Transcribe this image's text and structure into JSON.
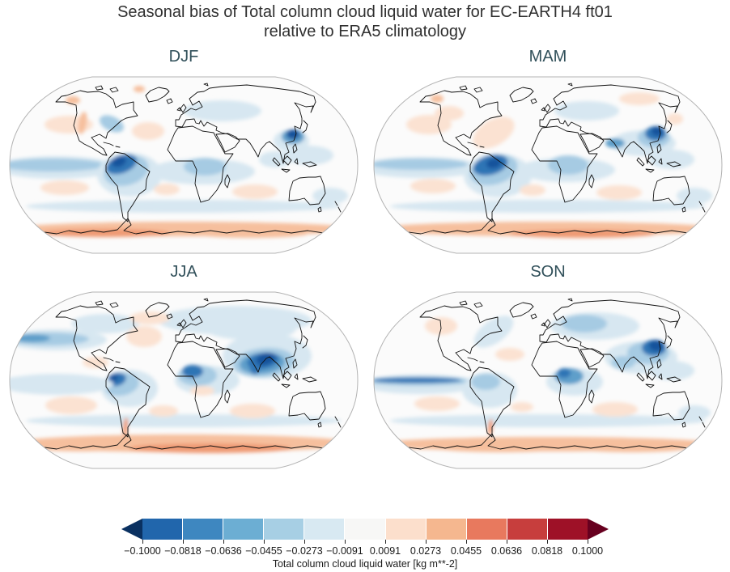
{
  "figure": {
    "title_line1": "Seasonal bias of Total column cloud liquid water for EC-EARTH4 ft01",
    "title_line2": "relative to ERA5 climatology"
  },
  "colors": {
    "title": "#303030",
    "panel_title": "#31505a",
    "map_bg": "#fbfbfb",
    "map_outline": "#b3b3b3",
    "coastline": "#111111"
  },
  "feature_palette": {
    "b5": "#17539c",
    "b4": "#2e74b5",
    "b3": "#5f9fca",
    "b2": "#a6cbe3",
    "b1": "#d7e7f1",
    "r1": "#fbe2d2",
    "r2": "#f6bf9d",
    "r3": "#ef9a73",
    "r4": "#e2765b"
  },
  "panels": [
    {
      "id": "djf",
      "label": "DJF",
      "features": [
        [
          60,
          115,
          75,
          14,
          0,
          "b1"
        ],
        [
          55,
          112,
          65,
          8,
          0,
          "b2"
        ],
        [
          240,
          120,
          65,
          16,
          0,
          "b1"
        ],
        [
          243,
          114,
          26,
          11,
          0,
          "b2"
        ],
        [
          150,
          124,
          40,
          27,
          0,
          "b1"
        ],
        [
          146,
          119,
          28,
          18,
          -15,
          "b2"
        ],
        [
          140,
          111,
          20,
          11,
          -20,
          "b4"
        ],
        [
          137,
          108,
          9,
          6,
          -20,
          "b5"
        ],
        [
          350,
          82,
          22,
          14,
          0,
          "b1"
        ],
        [
          352,
          77,
          14,
          9,
          0,
          "b3"
        ],
        [
          352,
          74,
          8,
          6,
          0,
          "b5"
        ],
        [
          265,
          45,
          48,
          13,
          0,
          "b1"
        ],
        [
          128,
          61,
          16,
          9,
          25,
          "b2"
        ],
        [
          372,
          100,
          30,
          12,
          0,
          "b1"
        ],
        [
          398,
          150,
          22,
          10,
          0,
          "b1"
        ],
        [
          330,
          105,
          20,
          10,
          0,
          "b1"
        ],
        [
          217,
          163,
          195,
          8,
          0,
          "b1"
        ],
        [
          75,
          62,
          30,
          11,
          0,
          "r1"
        ],
        [
          173,
          70,
          20,
          11,
          0,
          "r1"
        ],
        [
          92,
          60,
          5,
          14,
          10,
          "r2"
        ],
        [
          70,
          140,
          30,
          9,
          0,
          "r1"
        ],
        [
          196,
          142,
          16,
          7,
          0,
          "r1"
        ],
        [
          305,
          145,
          28,
          9,
          0,
          "r1"
        ],
        [
          217,
          191,
          212,
          9,
          0,
          "r2"
        ],
        [
          120,
          196,
          80,
          5,
          0,
          "r3"
        ],
        [
          300,
          197,
          70,
          5,
          0,
          "r2"
        ],
        [
          80,
          32,
          9,
          5,
          0,
          "r2"
        ],
        [
          162,
          18,
          7,
          4,
          0,
          "r2"
        ]
      ]
    },
    {
      "id": "mam",
      "label": "MAM",
      "features": [
        [
          60,
          115,
          75,
          13,
          0,
          "b1"
        ],
        [
          58,
          111,
          60,
          7,
          0,
          "b2"
        ],
        [
          240,
          118,
          60,
          15,
          0,
          "b1"
        ],
        [
          242,
          112,
          25,
          12,
          0,
          "b2"
        ],
        [
          155,
          125,
          42,
          27,
          0,
          "b1"
        ],
        [
          150,
          118,
          30,
          18,
          -15,
          "b2"
        ],
        [
          146,
          112,
          22,
          12,
          -15,
          "b4"
        ],
        [
          150,
          110,
          9,
          6,
          -10,
          "b5"
        ],
        [
          335,
          85,
          40,
          16,
          0,
          "b1"
        ],
        [
          348,
          78,
          20,
          12,
          0,
          "b2"
        ],
        [
          350,
          73,
          13,
          9,
          0,
          "b4"
        ],
        [
          352,
          70,
          7,
          6,
          0,
          "b5"
        ],
        [
          300,
          85,
          12,
          6,
          0,
          "b3"
        ],
        [
          265,
          45,
          40,
          12,
          0,
          "b1"
        ],
        [
          370,
          105,
          28,
          12,
          0,
          "b1"
        ],
        [
          398,
          150,
          22,
          10,
          0,
          "b1"
        ],
        [
          217,
          163,
          195,
          8,
          0,
          "b1"
        ],
        [
          150,
          72,
          28,
          16,
          -30,
          "r1"
        ],
        [
          70,
          62,
          28,
          12,
          0,
          "r1"
        ],
        [
          95,
          48,
          18,
          9,
          0,
          "r1"
        ],
        [
          330,
          30,
          25,
          8,
          0,
          "r1"
        ],
        [
          374,
          55,
          10,
          7,
          0,
          "r1"
        ],
        [
          75,
          138,
          28,
          9,
          0,
          "r1"
        ],
        [
          198,
          143,
          16,
          7,
          0,
          "r1"
        ],
        [
          305,
          146,
          28,
          9,
          0,
          "r1"
        ],
        [
          217,
          191,
          212,
          9,
          0,
          "r2"
        ],
        [
          260,
          197,
          90,
          5,
          0,
          "r3"
        ],
        [
          80,
          30,
          8,
          5,
          0,
          "r2"
        ]
      ]
    },
    {
      "id": "jja",
      "label": "JJA",
      "features": [
        [
          320,
          82,
          55,
          28,
          0,
          "b1"
        ],
        [
          316,
          90,
          38,
          18,
          -5,
          "b2"
        ],
        [
          314,
          91,
          28,
          13,
          -5,
          "b3"
        ],
        [
          315,
          88,
          20,
          10,
          -10,
          "b4"
        ],
        [
          318,
          86,
          12,
          7,
          -15,
          "b5"
        ],
        [
          305,
          97,
          6,
          8,
          0,
          "b4"
        ],
        [
          246,
          112,
          40,
          18,
          0,
          "b1"
        ],
        [
          234,
          106,
          24,
          13,
          0,
          "b2"
        ],
        [
          228,
          101,
          13,
          8,
          0,
          "b4"
        ],
        [
          150,
          122,
          35,
          23,
          0,
          "b1"
        ],
        [
          140,
          117,
          22,
          14,
          -10,
          "b2"
        ],
        [
          134,
          111,
          12,
          8,
          -15,
          "b4"
        ],
        [
          131,
          109,
          5,
          4,
          0,
          "b5"
        ],
        [
          60,
          62,
          62,
          13,
          0,
          "b1"
        ],
        [
          50,
          61,
          50,
          8,
          0,
          "b2"
        ],
        [
          30,
          60,
          22,
          5,
          0,
          "b3"
        ],
        [
          280,
          38,
          95,
          18,
          0,
          "b1"
        ],
        [
          120,
          42,
          42,
          12,
          0,
          "b1"
        ],
        [
          300,
          50,
          55,
          12,
          0,
          "b1"
        ],
        [
          55,
          114,
          62,
          9,
          0,
          "b2"
        ],
        [
          60,
          117,
          70,
          13,
          0,
          "b1"
        ],
        [
          217,
          162,
          195,
          8,
          0,
          "b1"
        ],
        [
          168,
          58,
          22,
          13,
          0,
          "r1"
        ],
        [
          108,
          90,
          16,
          7,
          0,
          "r1"
        ],
        [
          175,
          35,
          25,
          8,
          0,
          "r1"
        ],
        [
          78,
          143,
          32,
          11,
          0,
          "r1"
        ],
        [
          192,
          150,
          18,
          7,
          0,
          "r1"
        ],
        [
          302,
          150,
          28,
          9,
          0,
          "r1"
        ],
        [
          240,
          125,
          15,
          6,
          0,
          "r1"
        ],
        [
          217,
          190,
          212,
          11,
          0,
          "r2"
        ],
        [
          250,
          196,
          100,
          6,
          0,
          "r3"
        ],
        [
          90,
          195,
          60,
          5,
          0,
          "r2"
        ],
        [
          145,
          170,
          3,
          12,
          5,
          "r3"
        ]
      ]
    },
    {
      "id": "son",
      "label": "SON",
      "features": [
        [
          332,
          84,
          45,
          20,
          0,
          "b1"
        ],
        [
          341,
          78,
          26,
          14,
          0,
          "b2"
        ],
        [
          348,
          72,
          15,
          10,
          0,
          "b4"
        ],
        [
          351,
          69,
          9,
          7,
          0,
          "b5"
        ],
        [
          310,
          90,
          15,
          8,
          0,
          "b2"
        ],
        [
          275,
          45,
          55,
          17,
          0,
          "b1"
        ],
        [
          262,
          42,
          28,
          11,
          0,
          "b2"
        ],
        [
          250,
          114,
          35,
          17,
          0,
          "b1"
        ],
        [
          243,
          107,
          18,
          10,
          0,
          "b3"
        ],
        [
          237,
          103,
          8,
          6,
          0,
          "b4"
        ],
        [
          60,
          117,
          72,
          12,
          0,
          "b1"
        ],
        [
          58,
          113,
          65,
          6,
          0,
          "b2"
        ],
        [
          55,
          112,
          55,
          3.5,
          0,
          "b4"
        ],
        [
          145,
          124,
          34,
          22,
          0,
          "b1"
        ],
        [
          140,
          114,
          18,
          10,
          0,
          "b2"
        ],
        [
          150,
          52,
          28,
          14,
          -35,
          "b1"
        ],
        [
          370,
          100,
          28,
          12,
          0,
          "b1"
        ],
        [
          398,
          152,
          20,
          9,
          0,
          "b1"
        ],
        [
          217,
          162,
          195,
          8,
          0,
          "b1"
        ],
        [
          85,
          45,
          20,
          11,
          0,
          "r1"
        ],
        [
          170,
          80,
          18,
          8,
          0,
          "r1"
        ],
        [
          80,
          141,
          28,
          9,
          0,
          "r1"
        ],
        [
          185,
          145,
          14,
          6,
          0,
          "r1"
        ],
        [
          300,
          148,
          28,
          9,
          0,
          "r1"
        ],
        [
          217,
          191,
          212,
          9,
          0,
          "r2"
        ],
        [
          160,
          196,
          80,
          5,
          0,
          "r2"
        ],
        [
          320,
          196,
          70,
          5,
          0,
          "r2"
        ],
        [
          146,
          170,
          3,
          10,
          5,
          "r3"
        ]
      ]
    }
  ],
  "colorbar": {
    "label": "Total column cloud liquid water [kg m**-2]",
    "tick_labels": [
      "−0.1000",
      "−0.0818",
      "−0.0636",
      "−0.0455",
      "−0.0273",
      "−0.0091",
      "0.0091",
      "0.0273",
      "0.0455",
      "0.0636",
      "0.0818",
      "0.1000"
    ],
    "levels": [
      -0.1,
      -0.0818,
      -0.0636,
      -0.0455,
      -0.0273,
      -0.0091,
      0.0091,
      0.0273,
      0.0455,
      0.0636,
      0.0818,
      0.1
    ],
    "segment_colors": [
      "#2166ac",
      "#3e87c0",
      "#6caed3",
      "#a7cfe4",
      "#d8e9f2",
      "#f7f7f6",
      "#fcdfcc",
      "#f5b78f",
      "#e8795e",
      "#c73e3d",
      "#9e1127"
    ],
    "under_color": "#0a3161",
    "over_color": "#67001f"
  },
  "chart_data": {
    "type": "heatmap",
    "subtype": "filled-contour world maps",
    "projection": "robinson",
    "title": "Seasonal bias of Total column cloud liquid water for EC-EARTH4 ft01 relative to ERA5 climatology",
    "variable": "Total column cloud liquid water",
    "units": "kg m**-2",
    "model": "EC-EARTH4 ft01",
    "reference": "ERA5 climatology",
    "seasons": [
      "DJF",
      "MAM",
      "JJA",
      "SON"
    ],
    "contour_levels": [
      -0.1,
      -0.0818,
      -0.0636,
      -0.0455,
      -0.0273,
      -0.0091,
      0.0091,
      0.0273,
      0.0455,
      0.0636,
      0.0818,
      0.1
    ],
    "colormap": "RdBu_r",
    "extend": "both",
    "legend_position": "bottom horizontal colorbar",
    "notable_biases": {
      "DJF": [
        "strong negative bias (≤ −0.07) over NW Amazonia/Colombia and eastern China",
        "weak negative bias over tropical oceans, central Africa and Europe",
        "positive bias band (~+0.02 to +0.04) over the Southern Ocean near 60°S",
        "weak positive bias over subtropical N Pacific and mid N Atlantic"
      ],
      "MAM": [
        "strong negative bias over Amazonia and an intensified maximum over eastern China",
        "weak negative bias along equatorial ocean bands and central Africa",
        "positive bias band over the Southern Ocean",
        "weak positive patches over N Atlantic and N Pacific subtropics"
      ],
      "JJA": [
        "strongest negative bias (≤ −0.08) over India, Bay of Bengal and SE Asia (monsoon)",
        "negative bias over West Africa, NW South America and N Pacific storm track",
        "broad weak negative bias over northern Eurasia and N America",
        "positive bias band over the Southern Ocean, strongest of all seasons"
      ],
      "SON": [
        "strong negative bias over eastern China",
        "narrow dark-blue negative band along the equatorial east Pacific",
        "negative bias over eastern Europe/western Russia and central Africa",
        "positive bias band over the Southern Ocean and along NW North America coast"
      ]
    }
  }
}
